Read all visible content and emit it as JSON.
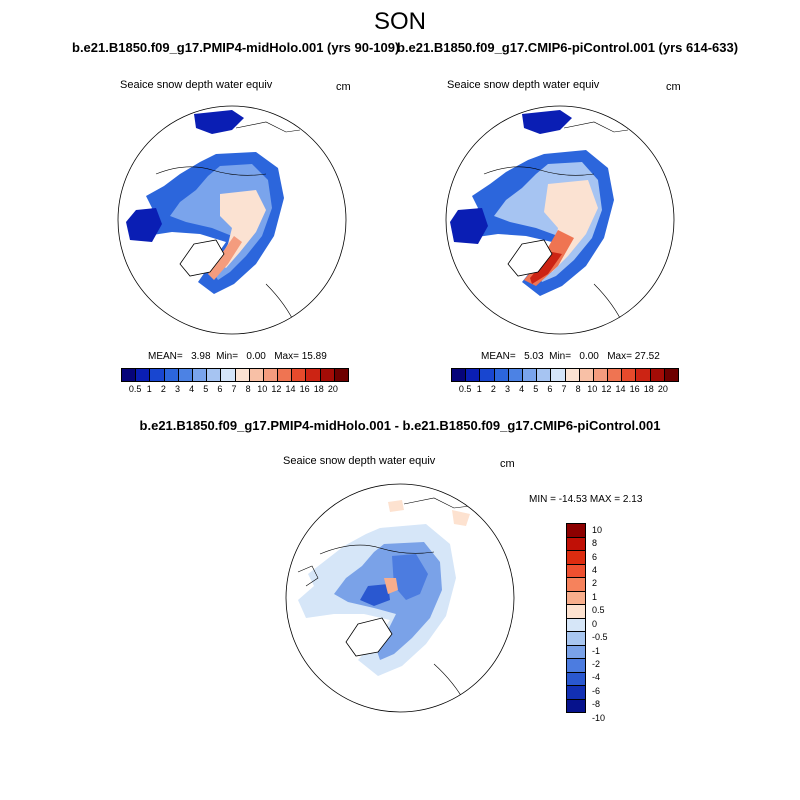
{
  "figure": {
    "season": "SON",
    "left_panel": {
      "experiment": "b.e21.B1850.f09_g17.PMIP4-midHolo.001 (yrs 90-109)",
      "variable": "Seaice snow depth water equiv",
      "units": "cm",
      "mean_label": "MEAN=",
      "mean": "3.98",
      "min_label": "Min=",
      "min": "0.00",
      "max_label": "Max=",
      "max": "15.89"
    },
    "right_panel": {
      "experiment": "b.e21.B1850.f09_g17.CMIP6-piControl.001 (yrs 614-633)",
      "variable": "Seaice snow depth water equiv",
      "units": "cm",
      "mean_label": "MEAN=",
      "mean": "5.03",
      "min_label": "Min=",
      "min": "0.00",
      "max_label": "Max=",
      "max": "27.52"
    },
    "diff_panel": {
      "title": "b.e21.B1850.f09_g17.PMIP4-midHolo.001 - b.e21.B1850.f09_g17.CMIP6-piControl.001",
      "variable": "Seaice snow depth water equiv",
      "units": "cm",
      "minmax_text": "MIN = -14.53 MAX =   2.13"
    },
    "abs_colorbar": {
      "colors": [
        "#06047a",
        "#0a1eb4",
        "#1846d0",
        "#2c66dc",
        "#4c82e4",
        "#7aa4ec",
        "#a6c4f2",
        "#d4e4f8",
        "#fbe2d2",
        "#f8c0a6",
        "#f49c7e",
        "#ef7452",
        "#e64a2c",
        "#cc2414",
        "#a40c06",
        "#6e0000"
      ],
      "labels": [
        "0.5",
        "1",
        "2",
        "3",
        "4",
        "5",
        "6",
        "7",
        "8",
        "10",
        "12",
        "14",
        "16",
        "18",
        "20"
      ]
    },
    "diff_colorbar": {
      "colors": [
        "#8c0000",
        "#c01006",
        "#dd2c10",
        "#ee5030",
        "#f6825c",
        "#f8ae8c",
        "#fde2d0",
        "#d6e6f8",
        "#a8c6f0",
        "#7aa2e8",
        "#4c7ce0",
        "#2a58d0",
        "#1230b4",
        "#06128c"
      ],
      "labels": [
        "10",
        "8",
        "6",
        "4",
        "2",
        "1",
        "0.5",
        "0",
        "-0.5",
        "-1",
        "-2",
        "-4",
        "-6",
        "-8",
        "-10"
      ]
    }
  }
}
